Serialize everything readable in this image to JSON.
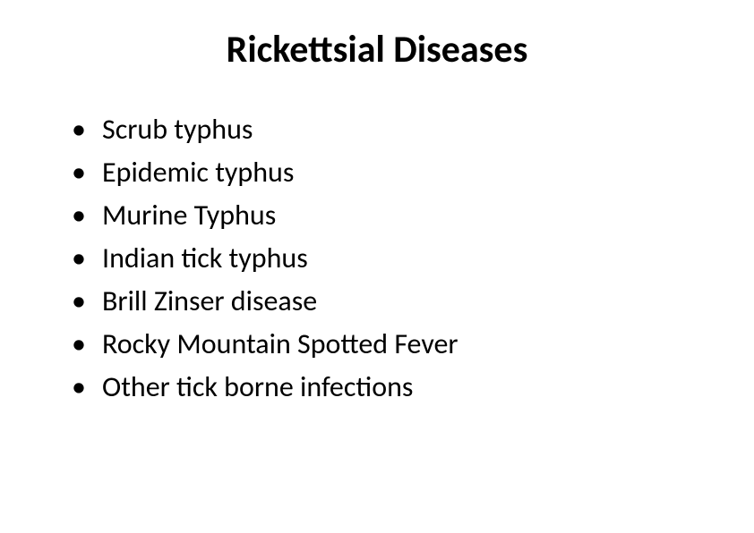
{
  "slide": {
    "title": "Rickettsial Diseases",
    "bullets": [
      "Scrub typhus",
      "Epidemic typhus",
      "Murine Typhus",
      "Indian tick typhus",
      "Brill Zinser disease",
      "Rocky Mountain Spotted Fever",
      "Other tick borne infections"
    ],
    "style": {
      "background_color": "#ffffff",
      "text_color": "#000000",
      "title_fontsize": 42,
      "title_fontweight": 700,
      "bullet_fontsize": 32,
      "font_family": "Calibri"
    }
  }
}
